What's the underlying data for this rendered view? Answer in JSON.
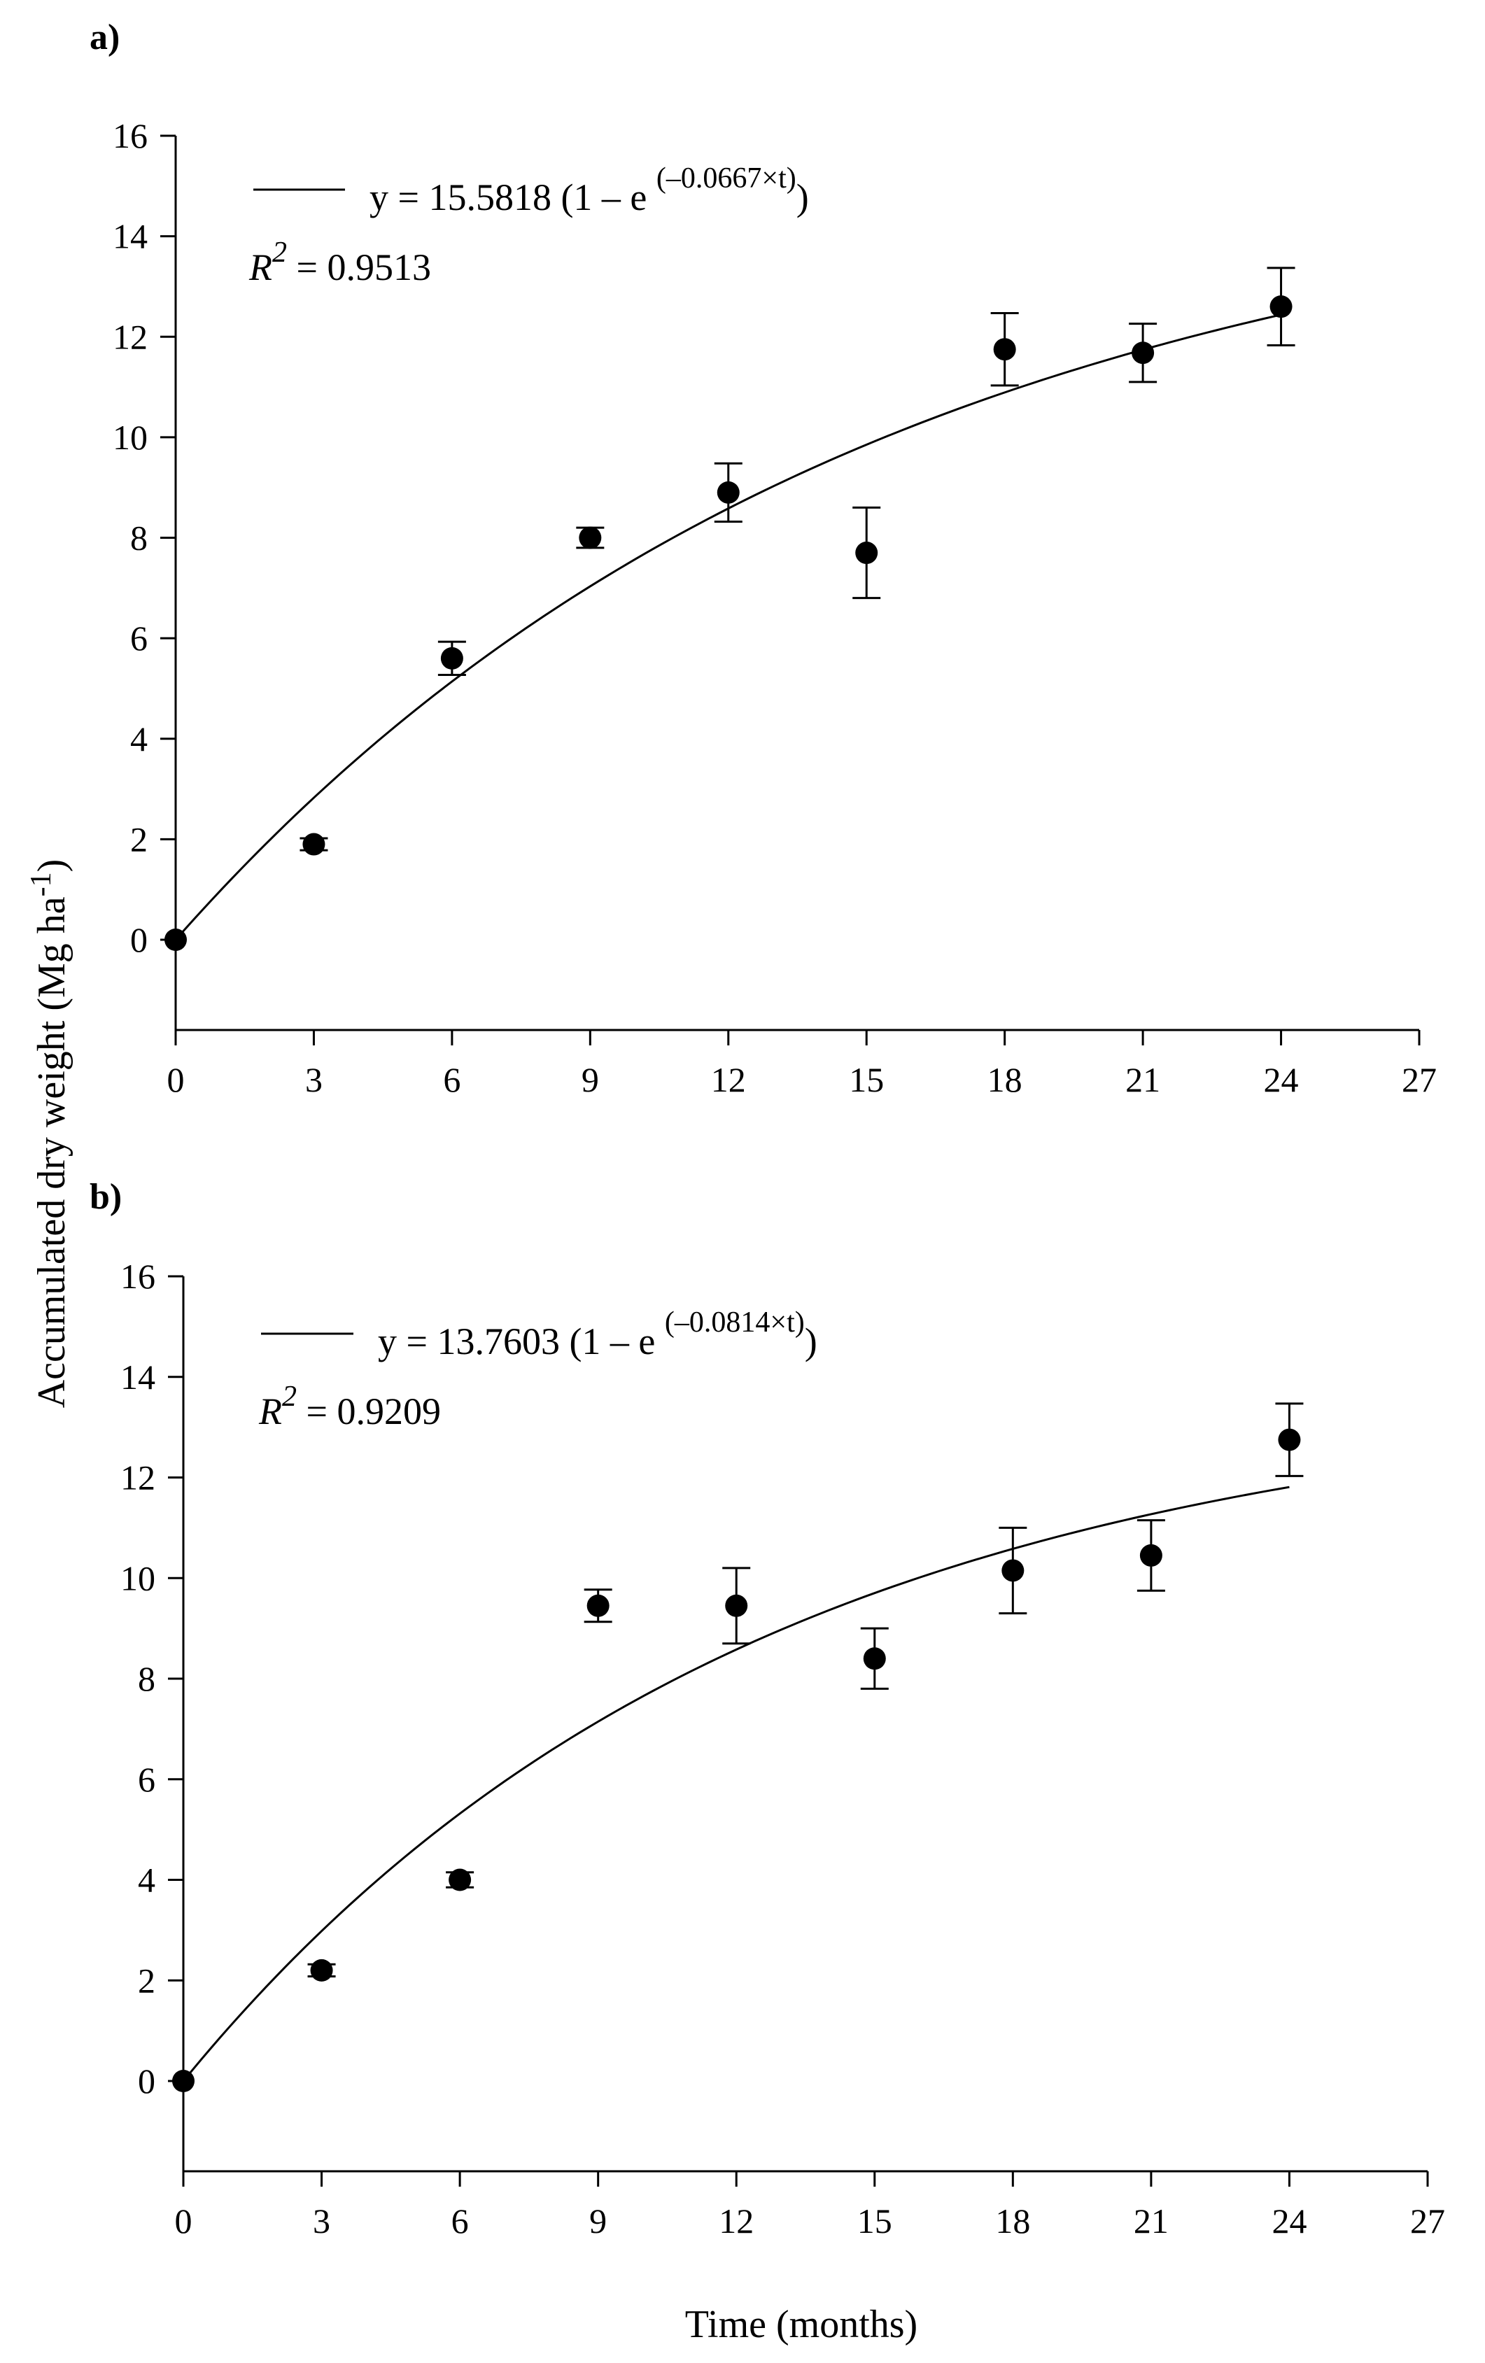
{
  "figure": {
    "ylabel_main": "Accumulated dry weight (Mg ha",
    "ylabel_exp": "-1",
    "ylabel_close": ")",
    "xlabel": "Time (months)"
  },
  "chart_data": [
    {
      "type": "scatter",
      "panel_label": "a)",
      "x": [
        0,
        3,
        6,
        9,
        12,
        15,
        18,
        21,
        24
      ],
      "y": [
        0,
        1.9,
        5.6,
        8.0,
        8.9,
        7.7,
        11.75,
        11.68,
        12.6
      ],
      "error": [
        0,
        0.12,
        0.33,
        0.2,
        0.58,
        0.9,
        0.72,
        0.58,
        0.77
      ],
      "fit": {
        "a": 15.5818,
        "b": 0.0667,
        "x_start": 0,
        "x_end": 24
      },
      "equation": {
        "prefix": "y = 15.5818 (1 – e ",
        "exponent": "(–0.0667×t)",
        "suffix": ")",
        "r2_label": "R",
        "r2_sup": "2",
        "r2_value": " = 0.9513"
      },
      "xlim": [
        0,
        27
      ],
      "ylim": [
        -1.8,
        16
      ],
      "xticks": [
        0,
        3,
        6,
        9,
        12,
        15,
        18,
        21,
        24,
        27
      ],
      "yticks": [
        0,
        2,
        4,
        6,
        8,
        10,
        12,
        14,
        16
      ]
    },
    {
      "type": "scatter",
      "panel_label": "b)",
      "x": [
        0,
        3,
        6,
        9,
        12,
        15,
        18,
        21,
        24
      ],
      "y": [
        0,
        2.2,
        4.0,
        9.45,
        9.45,
        8.4,
        10.15,
        10.45,
        12.75
      ],
      "error": [
        0,
        0.12,
        0.15,
        0.32,
        0.75,
        0.6,
        0.85,
        0.7,
        0.72
      ],
      "fit": {
        "a": 13.7603,
        "b": 0.0814,
        "x_start": 0,
        "x_end": 24
      },
      "equation": {
        "prefix": "y = 13.7603 (1 – e ",
        "exponent": "(–0.0814×t)",
        "suffix": ")",
        "r2_label": "R",
        "r2_sup": "2",
        "r2_value": " = 0.9209"
      },
      "xlim": [
        0,
        27
      ],
      "ylim": [
        -1.8,
        16
      ],
      "xticks": [
        0,
        3,
        6,
        9,
        12,
        15,
        18,
        21,
        24,
        27
      ],
      "yticks": [
        0,
        2,
        4,
        6,
        8,
        10,
        12,
        14,
        16
      ]
    }
  ]
}
